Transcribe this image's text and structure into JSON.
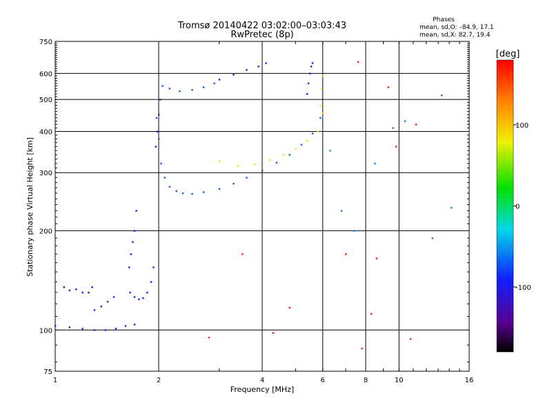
{
  "header": {
    "title_line1": "Tromsø 20140422 03:02:00–03:03:43",
    "title_line2": "RwPretec (8p)",
    "phases_heading": "Phases",
    "phases_line1": "mean, sd,O: –84.9, 17.1",
    "phases_line2": "mean, sd,X:  82.7, 19.4"
  },
  "colorbar": {
    "unit_label": "[deg]",
    "ticks": [
      100,
      0,
      -100
    ],
    "range": [
      -180,
      180
    ],
    "colormap": "rainbow (black-purple-blue-cyan-green-yellow-orange-red)"
  },
  "chart_data": {
    "type": "scatter",
    "xlabel": "Frequency [MHz]",
    "ylabel": "Stationary phase Virtual Height [km]",
    "x_scale": "log",
    "y_scale": "log",
    "xlim": [
      1,
      16
    ],
    "ylim": [
      75,
      750
    ],
    "x_ticks": [
      1,
      2,
      4,
      6,
      8,
      10,
      16
    ],
    "y_ticks": [
      75,
      100,
      200,
      300,
      400,
      500,
      600,
      750
    ],
    "x_gridlines": [
      2,
      4,
      6,
      8,
      10
    ],
    "y_gridlines": [
      100,
      200,
      300,
      400,
      500,
      600
    ],
    "series": [
      {
        "color_value_deg": -95,
        "x": [
          1.0,
          1.1,
          1.2,
          1.3,
          1.4,
          1.5,
          1.6,
          1.7
        ],
        "y": [
          103,
          102,
          101,
          100,
          100,
          101,
          103,
          104
        ]
      },
      {
        "color_value_deg": -98,
        "x": [
          1.06,
          1.1,
          1.15,
          1.2,
          1.25,
          1.28
        ],
        "y": [
          135,
          132,
          133,
          130,
          130,
          135
        ]
      },
      {
        "color_value_deg": -92,
        "x": [
          1.3,
          1.36,
          1.42,
          1.48
        ],
        "y": [
          115,
          118,
          122,
          126
        ]
      },
      {
        "color_value_deg": -90,
        "x": [
          1.65,
          1.7,
          1.75,
          1.8,
          1.85,
          1.9,
          1.93
        ],
        "y": [
          130,
          126,
          124,
          125,
          130,
          140,
          155
        ]
      },
      {
        "color_value_deg": -110,
        "x": [
          1.64,
          1.66,
          1.68,
          1.7,
          1.72
        ],
        "y": [
          155,
          170,
          185,
          200,
          230
        ]
      },
      {
        "color_value_deg": -70,
        "x": [
          1.97,
          2.0,
          2.03,
          2.08,
          2.15,
          2.25,
          2.35,
          2.5,
          2.7,
          3.0,
          3.3,
          3.6,
          4.0,
          4.4,
          4.8,
          5.2,
          5.6,
          5.9
        ],
        "y": [
          440,
          380,
          320,
          290,
          272,
          264,
          260,
          259,
          262,
          268,
          278,
          290,
          305,
          322,
          340,
          365,
          395,
          440
        ]
      },
      {
        "color_value_deg": -105,
        "x": [
          1.96,
          1.98,
          2.0,
          2.02
        ],
        "y": [
          360,
          400,
          450,
          500
        ]
      },
      {
        "color_value_deg": -75,
        "x": [
          2.05,
          2.15,
          2.3,
          2.5,
          2.7,
          2.9
        ],
        "y": [
          550,
          540,
          530,
          535,
          545,
          560
        ]
      },
      {
        "color_value_deg": -110,
        "x": [
          3.0,
          3.3,
          3.6,
          3.9,
          4.1
        ],
        "y": [
          575,
          595,
          615,
          630,
          645
        ]
      },
      {
        "color_value_deg": -118,
        "x": [
          5.4,
          5.45,
          5.5,
          5.55,
          5.6
        ],
        "y": [
          520,
          560,
          600,
          630,
          645
        ]
      },
      {
        "color_value_deg": 85,
        "x": [
          3.0,
          3.4,
          3.8,
          4.2,
          4.6,
          5.0,
          5.4,
          5.8,
          6.0
        ],
        "y": [
          325,
          315,
          318,
          328,
          340,
          355,
          375,
          400,
          455
        ]
      },
      {
        "color_value_deg": 80,
        "x": [
          5.9,
          5.95,
          6.0
        ],
        "y": [
          480,
          540,
          590
        ]
      },
      {
        "color_value_deg": 170,
        "x": [
          2.8,
          3.5,
          4.3,
          4.8,
          7.0,
          7.6,
          7.8,
          8.3,
          8.6,
          9.3,
          9.8,
          10.8,
          11.2
        ],
        "y": [
          95,
          170,
          98,
          117,
          170,
          650,
          88,
          112,
          165,
          545,
          360,
          94,
          420
        ]
      },
      {
        "color_value_deg": -60,
        "x": [
          6.3,
          6.8,
          7.4,
          8.5,
          9.6,
          10.4,
          12.5,
          13.3,
          14.2
        ],
        "y": [
          350,
          230,
          200,
          320,
          410,
          430,
          190,
          515,
          235
        ]
      }
    ]
  }
}
